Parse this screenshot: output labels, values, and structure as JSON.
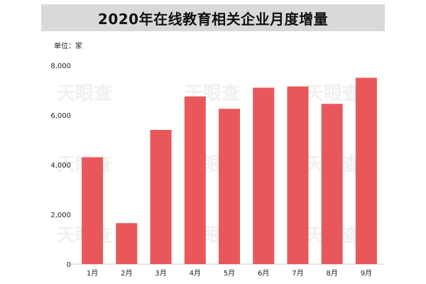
{
  "chart_data": {
    "type": "bar",
    "title": "2020年在线教育相关企业月度增量",
    "unit_label": "单位：家",
    "categories": [
      "1月",
      "2月",
      "3月",
      "4月",
      "5月",
      "6月",
      "7月",
      "8月",
      "9月"
    ],
    "values": [
      4300,
      1650,
      5400,
      6750,
      6250,
      7100,
      7150,
      6450,
      7500
    ],
    "ylim": [
      0,
      8000
    ],
    "yticks": [
      0,
      2000,
      4000,
      6000,
      8000
    ],
    "ytick_labels": [
      "0",
      "2,000",
      "4,000",
      "6,000",
      "8,000"
    ],
    "grid": false,
    "bar_color": "#e8585a",
    "watermark_text": "天眼查",
    "xlabel": "",
    "ylabel": ""
  }
}
